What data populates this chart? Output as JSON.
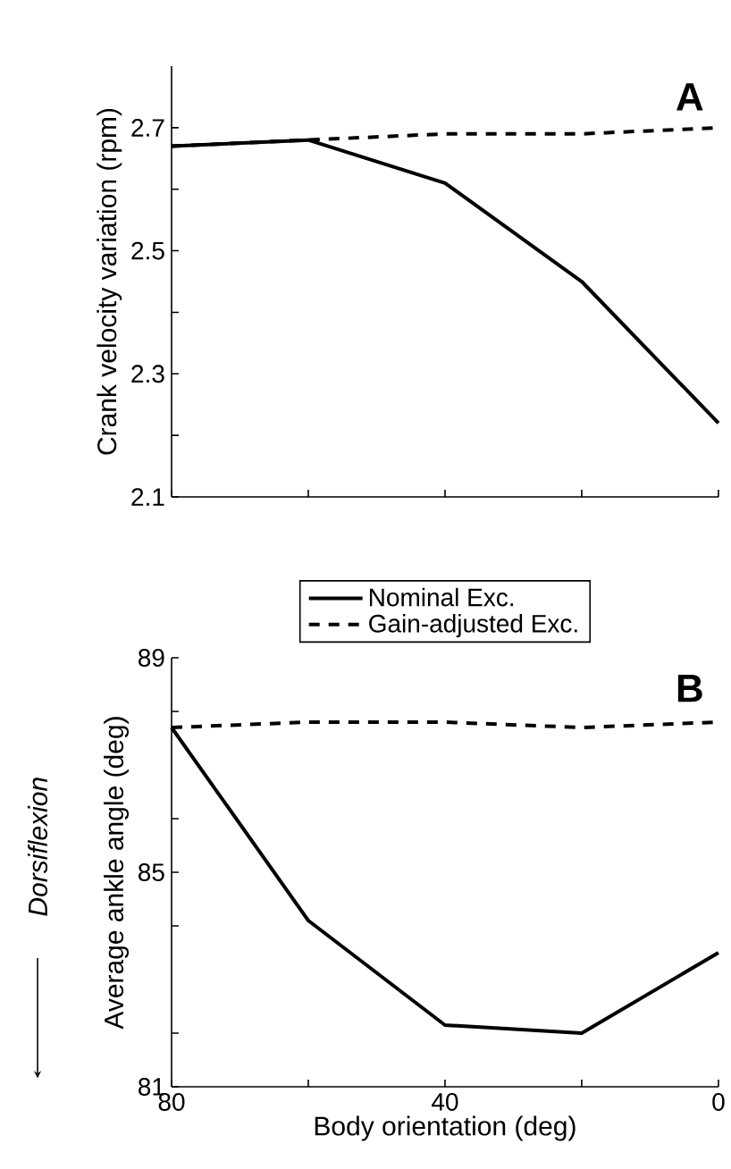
{
  "chart_data": [
    {
      "type": "line",
      "ylabel": "Crank velocity variation (rpm)",
      "annotations": [
        "A"
      ],
      "x": [
        80,
        60,
        40,
        20,
        0
      ],
      "series": [
        {
          "color": "#000000",
          "line_style": "solid",
          "values": [
            2.67,
            2.68,
            2.61,
            2.45,
            2.22
          ]
        },
        {
          "color": "#000000",
          "line_style": "dashed",
          "values": [
            2.67,
            2.68,
            2.69,
            2.69,
            2.7
          ]
        }
      ],
      "xlim": [
        80,
        0
      ],
      "xticks": [
        {
          "value": 80,
          "label": null
        },
        {
          "value": 60,
          "label": null
        },
        {
          "value": 40,
          "label": null
        },
        {
          "value": 20,
          "label": null
        },
        {
          "value": 0,
          "label": null
        }
      ],
      "ylim": [
        2.1,
        2.8
      ],
      "yticks": [
        2.1,
        {
          "value": 2.2,
          "label": null
        },
        2.3,
        {
          "value": 2.4,
          "label": null
        },
        2.5,
        {
          "value": 2.6,
          "label": null
        },
        2.7
      ],
      "tick_labels": "y",
      "grid": false,
      "legend": false
    },
    {
      "type": "line",
      "xlabel": "Body orientation (deg)",
      "ylabel": "Average ankle angle (deg)",
      "annotations": [
        "B",
        "Dorsiflexion"
      ],
      "x": [
        80,
        60,
        40,
        20,
        0
      ],
      "series": [
        {
          "name": "Nominal Exc.",
          "color": "#000000",
          "line_style": "solid",
          "values": [
            87.7,
            84.1,
            82.15,
            82.0,
            83.5
          ]
        },
        {
          "name": "Gain-adjusted Exc.",
          "color": "#000000",
          "line_style": "dashed",
          "values": [
            87.7,
            87.8,
            87.8,
            87.7,
            87.8
          ]
        }
      ],
      "xlim": [
        80,
        0
      ],
      "xticks": [
        80,
        {
          "value": 60,
          "label": null
        },
        40,
        {
          "value": 20,
          "label": null
        },
        0
      ],
      "ylim": [
        81,
        89
      ],
      "yticks": [
        81,
        {
          "value": 82,
          "label": null
        },
        {
          "value": 84,
          "label": null
        },
        85,
        {
          "value": 86,
          "label": null
        },
        {
          "value": 88,
          "label": null
        },
        89
      ],
      "grid": false,
      "legend": "top"
    }
  ]
}
